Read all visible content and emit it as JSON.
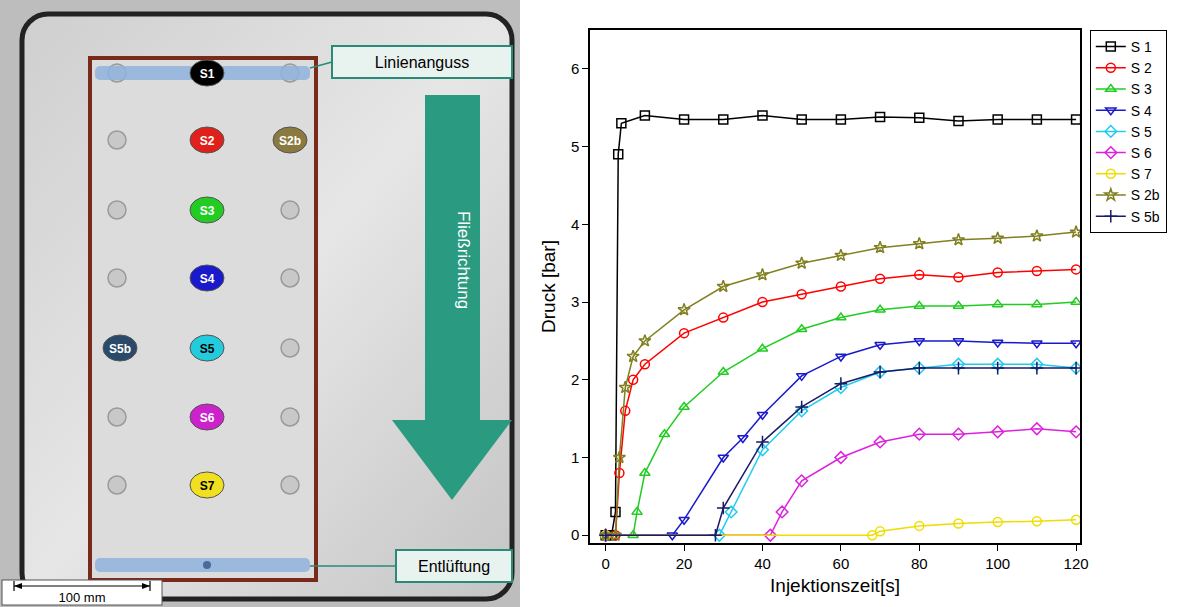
{
  "chart_data": {
    "type": "line",
    "x_label": "Injektionszeit[s]",
    "y_label": "Druck [bar]",
    "xlim": [
      -4,
      121
    ],
    "ylim": [
      -0.1,
      6.5
    ],
    "xticks": [
      0,
      20,
      40,
      60,
      80,
      100,
      120
    ],
    "yticks": [
      0,
      1,
      2,
      3,
      4,
      5,
      6
    ],
    "grid": false,
    "legend": "right",
    "series": [
      {
        "name": "S 1",
        "color": "#000000",
        "marker": "square-open",
        "x": [
          0,
          1.5,
          2.5,
          3.2,
          4,
          10,
          20,
          30,
          40,
          50,
          60,
          70,
          80,
          90,
          100,
          110,
          120
        ],
        "values": [
          0,
          0,
          0.3,
          4.9,
          5.3,
          5.4,
          5.35,
          5.35,
          5.4,
          5.35,
          5.35,
          5.38,
          5.37,
          5.33,
          5.35,
          5.35,
          5.35
        ]
      },
      {
        "name": "S 2",
        "color": "#ff0000",
        "marker": "circle-open",
        "x": [
          0,
          2.5,
          3.5,
          5,
          7,
          10,
          20,
          30,
          40,
          50,
          60,
          70,
          80,
          90,
          100,
          110,
          120
        ],
        "values": [
          0,
          0,
          0.8,
          1.6,
          2.0,
          2.2,
          2.6,
          2.8,
          3.0,
          3.1,
          3.2,
          3.3,
          3.35,
          3.32,
          3.38,
          3.4,
          3.42
        ]
      },
      {
        "name": "S 3",
        "color": "#22cc22",
        "marker": "triangle-up-open",
        "x": [
          0,
          7,
          8,
          10,
          15,
          20,
          30,
          40,
          50,
          60,
          70,
          80,
          90,
          100,
          110,
          120
        ],
        "values": [
          0,
          0,
          0.3,
          0.8,
          1.3,
          1.65,
          2.1,
          2.4,
          2.65,
          2.8,
          2.9,
          2.95,
          2.95,
          2.97,
          2.97,
          3.0
        ]
      },
      {
        "name": "S 4",
        "color": "#1a1acc",
        "marker": "triangle-down-open",
        "x": [
          0,
          17,
          20,
          30,
          35,
          40,
          50,
          60,
          70,
          80,
          90,
          100,
          110,
          120
        ],
        "values": [
          0,
          0,
          0.2,
          1.0,
          1.25,
          1.55,
          2.05,
          2.3,
          2.45,
          2.5,
          2.5,
          2.48,
          2.47,
          2.47
        ]
      },
      {
        "name": "S 5",
        "color": "#22ccee",
        "marker": "diamond-open",
        "x": [
          0,
          29,
          32,
          40,
          50,
          60,
          70,
          80,
          90,
          100,
          110,
          120
        ],
        "values": [
          0,
          0,
          0.3,
          1.1,
          1.6,
          1.9,
          2.1,
          2.15,
          2.2,
          2.2,
          2.2,
          2.15
        ]
      },
      {
        "name": "S 6",
        "color": "#dd22dd",
        "marker": "diamond-open",
        "x": [
          0,
          42,
          45,
          50,
          60,
          70,
          80,
          90,
          100,
          110,
          120
        ],
        "values": [
          0,
          0,
          0.3,
          0.7,
          1.0,
          1.2,
          1.3,
          1.3,
          1.33,
          1.37,
          1.33
        ]
      },
      {
        "name": "S 7",
        "color": "#eedd00",
        "marker": "circle-open",
        "x": [
          0,
          68,
          70,
          80,
          90,
          100,
          110,
          120
        ],
        "values": [
          0,
          0,
          0.05,
          0.12,
          0.15,
          0.17,
          0.18,
          0.2
        ]
      },
      {
        "name": "S 2b",
        "color": "#808020",
        "marker": "star-open",
        "x": [
          0,
          2.5,
          3.5,
          5,
          7,
          10,
          20,
          30,
          40,
          50,
          60,
          70,
          80,
          90,
          100,
          110,
          120
        ],
        "values": [
          0,
          0,
          1.0,
          1.9,
          2.3,
          2.5,
          2.9,
          3.2,
          3.35,
          3.5,
          3.6,
          3.7,
          3.75,
          3.8,
          3.82,
          3.85,
          3.9
        ]
      },
      {
        "name": "S 5b",
        "color": "#1a1a66",
        "marker": "cross-thin-open",
        "x": [
          0,
          28,
          30,
          40,
          50,
          60,
          70,
          80,
          90,
          100,
          110,
          120
        ],
        "values": [
          0,
          0,
          0.35,
          1.2,
          1.65,
          1.95,
          2.1,
          2.15,
          2.15,
          2.15,
          2.15,
          2.15
        ]
      }
    ]
  },
  "diagram": {
    "gate_label": "Linienanguss",
    "flow_label": "Fließrichtung",
    "vent_label": "Entlüftung",
    "scale_label": "100 mm",
    "sensors": [
      {
        "label": "S1",
        "color": "#000000"
      },
      {
        "label": "S2",
        "color": "#e0201a"
      },
      {
        "label": "S2b",
        "color": "#8a7a40"
      },
      {
        "label": "S3",
        "color": "#22cc22"
      },
      {
        "label": "S4",
        "color": "#1a1acc"
      },
      {
        "label": "S5b",
        "color": "#2a4a6a"
      },
      {
        "label": "S5",
        "color": "#22ccdd"
      },
      {
        "label": "S6",
        "color": "#cc22cc"
      },
      {
        "label": "S7",
        "color": "#f0e020"
      }
    ]
  }
}
